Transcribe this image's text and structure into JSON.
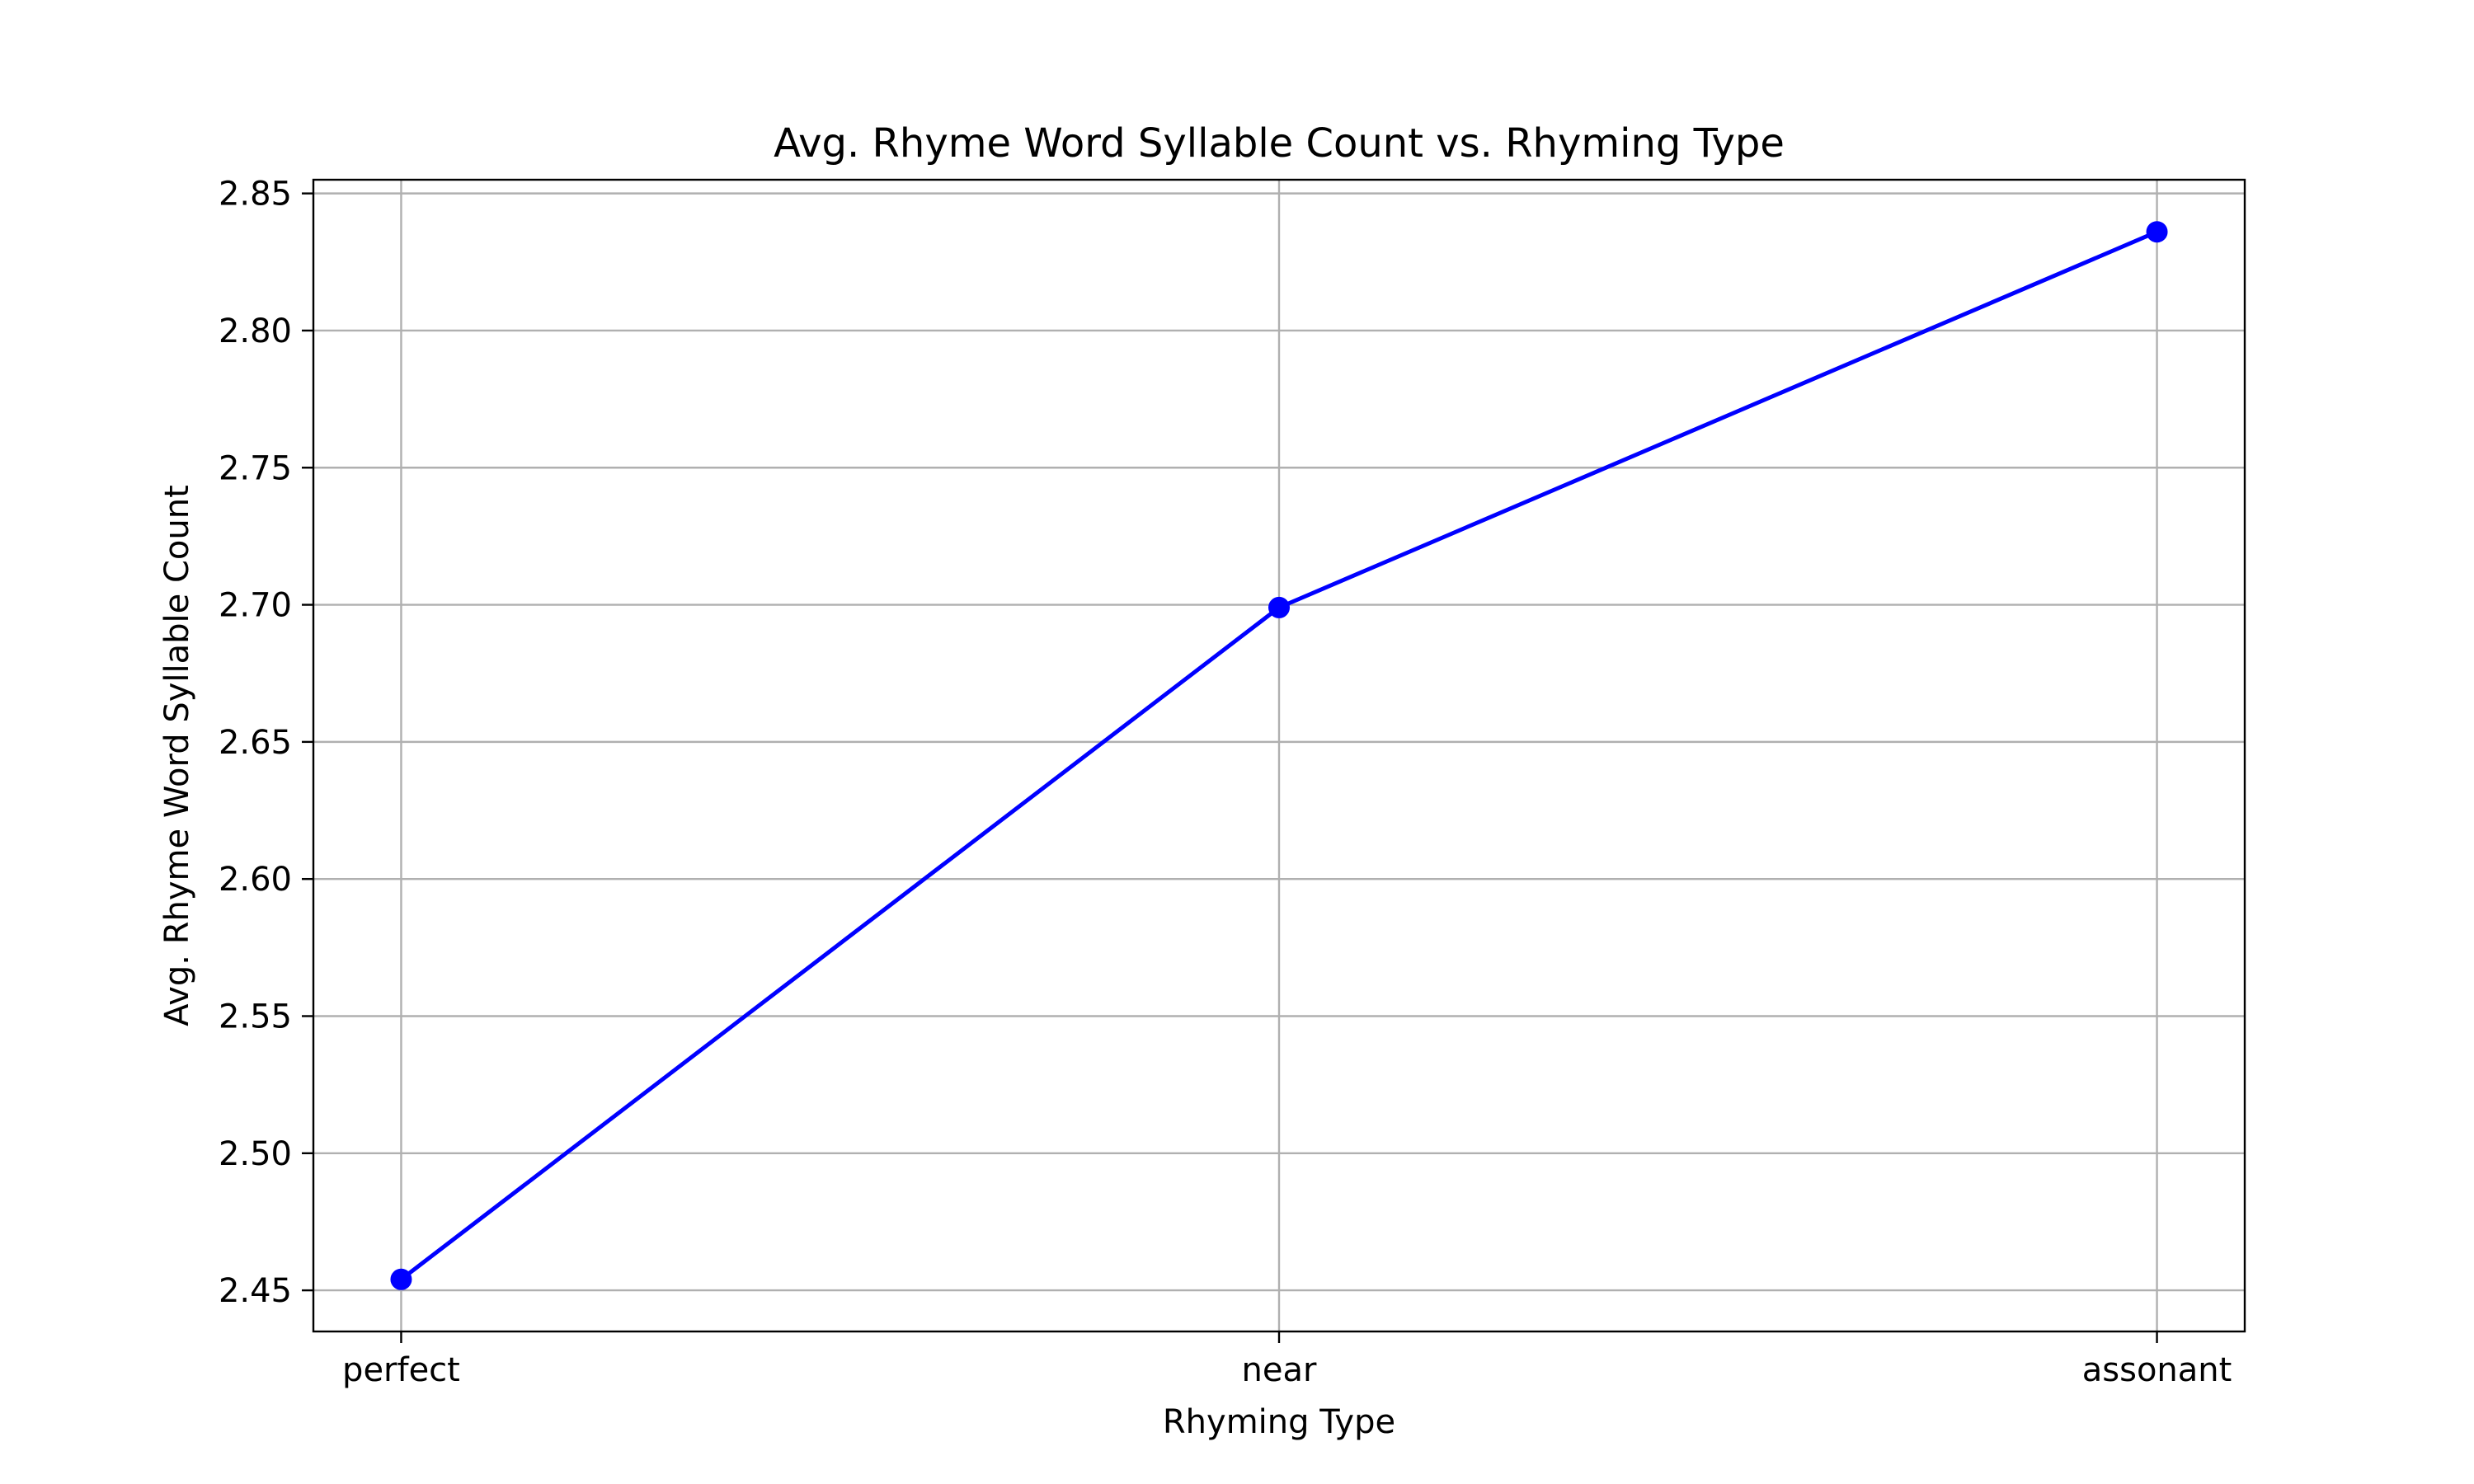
{
  "chart_data": {
    "type": "line",
    "title": "Avg. Rhyme Word Syllable Count vs. Rhyming Type",
    "xlabel": "Rhyming Type",
    "ylabel": "Avg. Rhyme Word Syllable Count",
    "categories": [
      "perfect",
      "near",
      "assonant"
    ],
    "series": [
      {
        "values": [
          2.454,
          2.699,
          2.836
        ],
        "color": "#0000ff",
        "marker": "circle"
      }
    ],
    "ylim": [
      2.435,
      2.855
    ],
    "yticks": [
      2.45,
      2.5,
      2.55,
      2.6,
      2.65,
      2.7,
      2.75,
      2.8,
      2.85
    ],
    "ytick_labels": [
      "2.45",
      "2.50",
      "2.55",
      "2.60",
      "2.65",
      "2.70",
      "2.75",
      "2.80",
      "2.85"
    ],
    "grid": true,
    "legend": "none"
  }
}
